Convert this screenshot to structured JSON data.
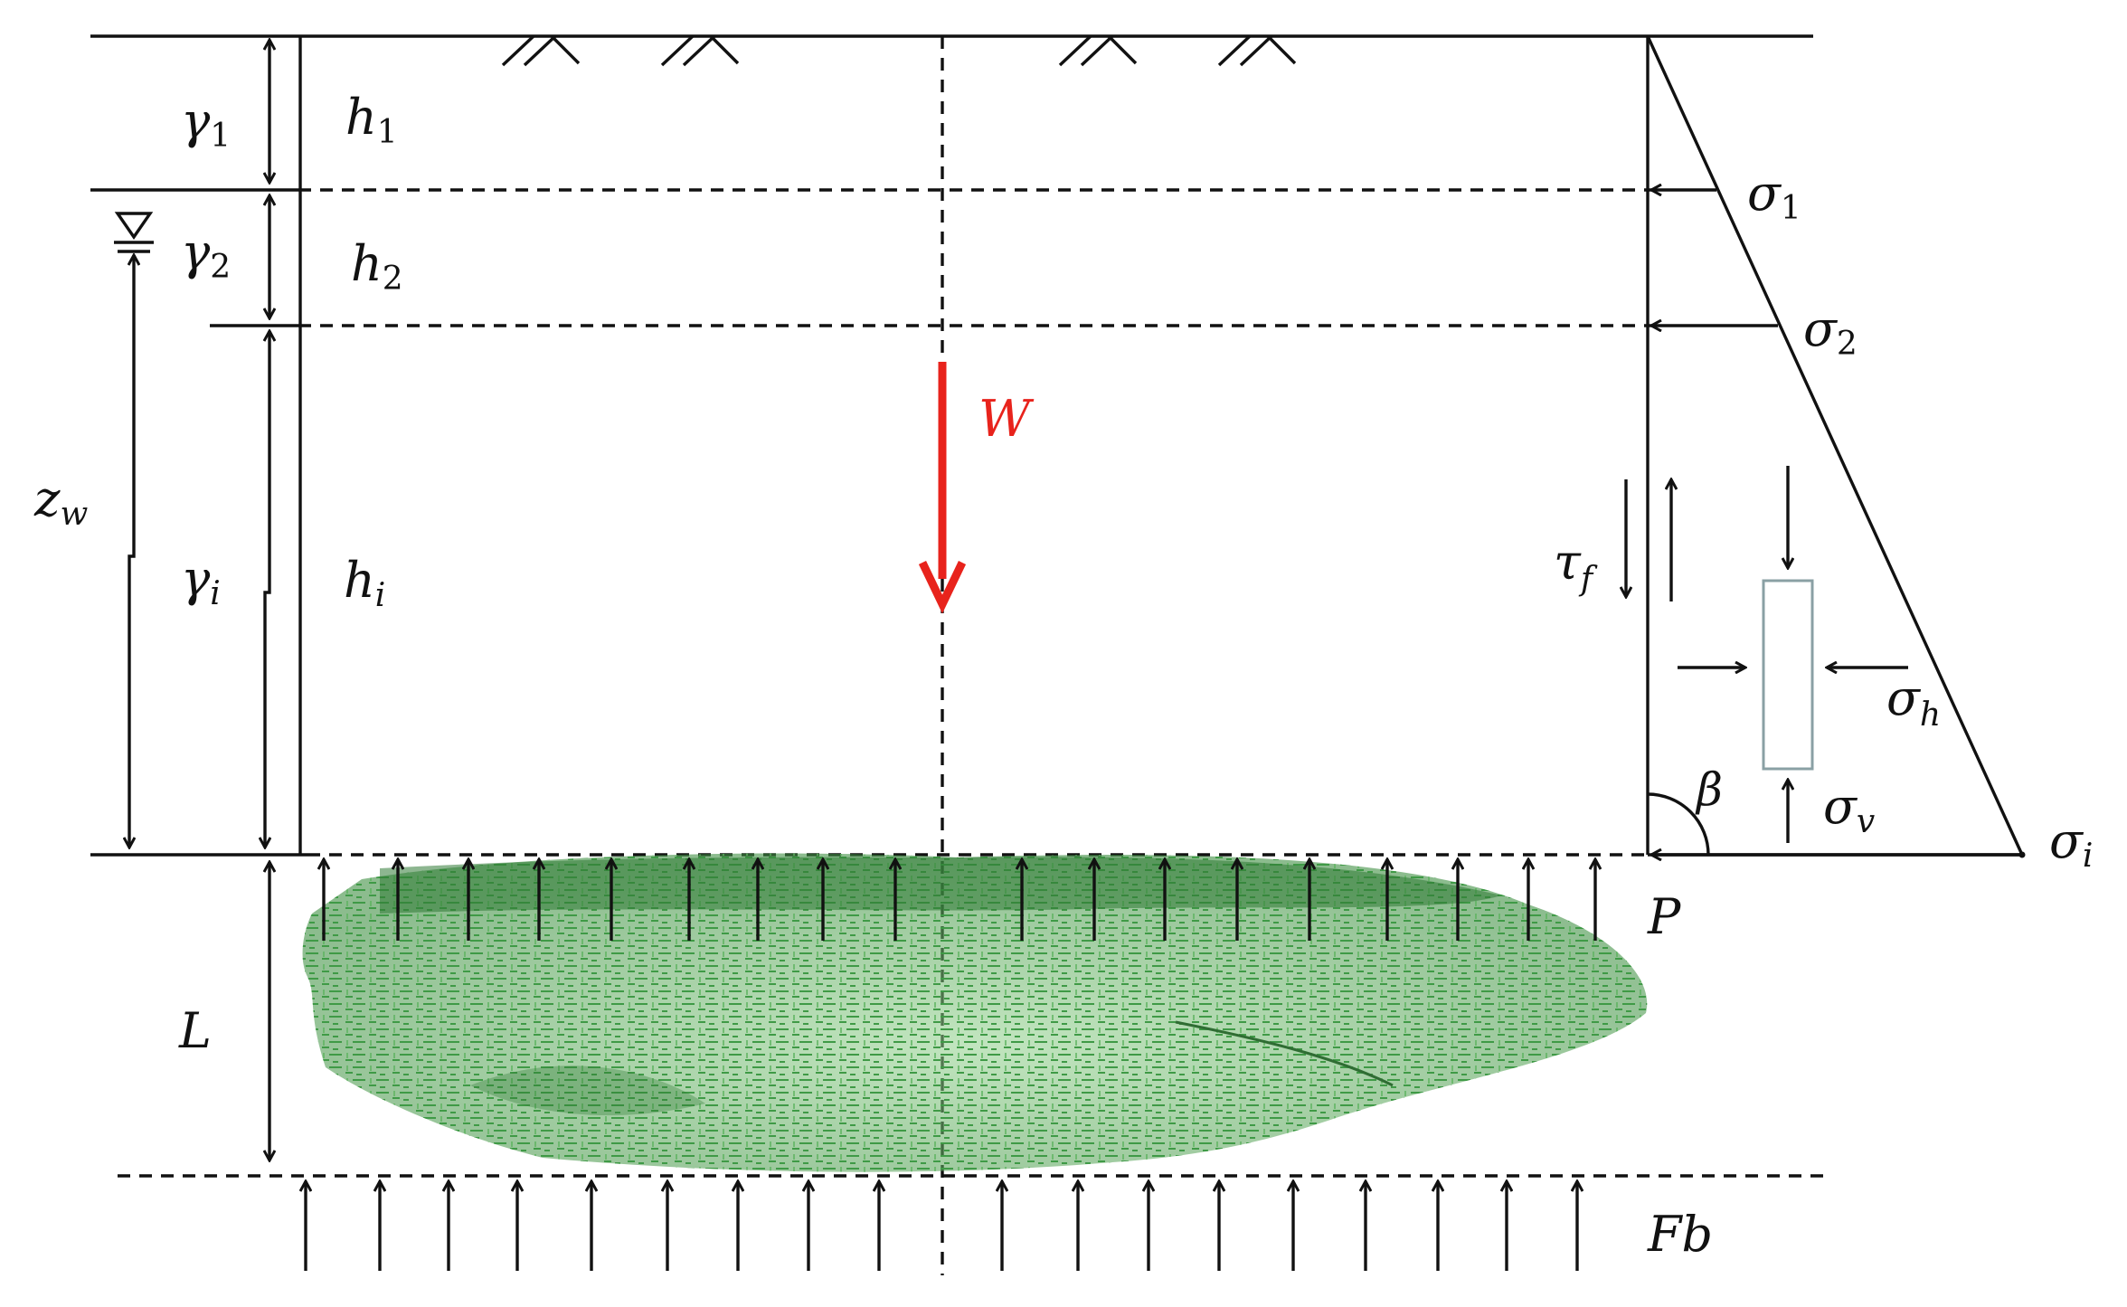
{
  "labels": {
    "gamma1_base": "γ",
    "gamma1_sub": "1",
    "gamma2_base": "γ",
    "gamma2_sub": "2",
    "gammai_base": "γ",
    "gammai_sub": "i",
    "h1_base": "h",
    "h1_sub": "1",
    "h2_base": "h",
    "h2_sub": "2",
    "hi_base": "h",
    "hi_sub": "i",
    "zw_base": "z",
    "zw_sub": "w",
    "W": "W",
    "tauf_base": "τ",
    "tauf_sub": "f",
    "sigma1_base": "σ",
    "sigma1_sub": "1",
    "sigma2_base": "σ",
    "sigma2_sub": "2",
    "sigmah_base": "σ",
    "sigmah_sub": "h",
    "sigmav_base": "σ",
    "sigmav_sub": "v",
    "sigmai_base": "σ",
    "sigmai_sub": "i",
    "beta": "β",
    "P": "P",
    "L": "L",
    "Fb": "Fb"
  },
  "colors": {
    "ink": "#111111",
    "weight_arrow": "#e8231c",
    "element_box": "#8aa0a4",
    "rock_dark": "#2f7a35",
    "rock_mid": "#4d9a4f",
    "rock_light": "#8fd08a"
  },
  "icons": {
    "water_table": "water-table-icon",
    "ground_hatch": "ground-surface-hatch-icon"
  }
}
